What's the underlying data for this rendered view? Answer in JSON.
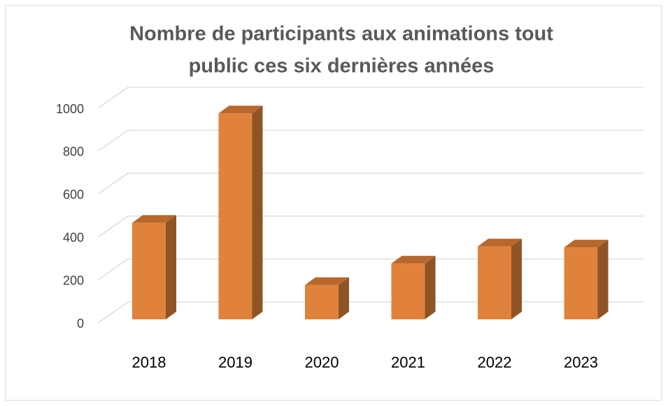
{
  "chart_data": {
    "type": "bar3d",
    "title": [
      "Nombre de participants aux animations tout",
      "public ces six dernières années"
    ],
    "categories": [
      "2018",
      "2019",
      "2020",
      "2021",
      "2022",
      "2023"
    ],
    "values": [
      450,
      960,
      160,
      260,
      340,
      335
    ],
    "color": "#e0823c",
    "ylim": [
      0,
      1000
    ],
    "yticks": [
      0,
      200,
      400,
      600,
      800,
      1000
    ],
    "grid": true
  }
}
